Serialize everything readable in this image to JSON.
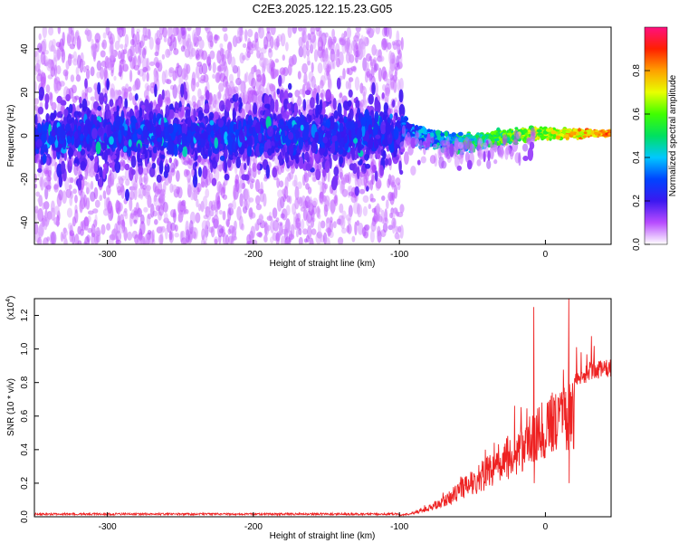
{
  "figure_title": "C2E3.2025.122.15.23.G05",
  "chart_data": [
    {
      "type": "heatmap",
      "xlabel": "Height of straight line (km)",
      "ylabel": "Frequency (Hz)",
      "xlim": [
        -350,
        45
      ],
      "ylim": [
        -50,
        50
      ],
      "x_ticks": [
        -300,
        -200,
        -100,
        0
      ],
      "y_ticks": [
        -40,
        -20,
        0,
        20,
        40
      ],
      "noise_region_x": [
        -350,
        -98
      ],
      "signal_track": [
        {
          "x": -98,
          "y": 3
        },
        {
          "x": -90,
          "y": 1
        },
        {
          "x": -80,
          "y": -1
        },
        {
          "x": -70,
          "y": -3
        },
        {
          "x": -60,
          "y": -4
        },
        {
          "x": -50,
          "y": -3
        },
        {
          "x": -40,
          "y": -2
        },
        {
          "x": -30,
          "y": -1
        },
        {
          "x": -20,
          "y": 0
        },
        {
          "x": -10,
          "y": 1
        },
        {
          "x": 0,
          "y": 1
        },
        {
          "x": 10,
          "y": 1
        },
        {
          "x": 20,
          "y": 1
        },
        {
          "x": 30,
          "y": 1
        },
        {
          "x": 45,
          "y": 1
        }
      ],
      "grid": false
    },
    {
      "type": "line",
      "xlabel": "Height of straight line (km)",
      "ylabel": "SNR (10 * v/v)",
      "yscale_note": "(x10",
      "yscale_exp": "4",
      "yscale_close": ")",
      "xlim": [
        -350,
        45
      ],
      "ylim": [
        0,
        1.3
      ],
      "x_ticks": [
        -300,
        -200,
        -100,
        0
      ],
      "y_ticks": [
        0.0,
        0.2,
        0.4,
        0.6,
        0.8,
        1.0,
        1.2
      ],
      "series": [
        {
          "color": "#ee2222",
          "envelope": [
            {
              "x": -350,
              "y": 0.01
            },
            {
              "x": -100,
              "y": 0.01
            },
            {
              "x": -90,
              "y": 0.03
            },
            {
              "x": -80,
              "y": 0.07
            },
            {
              "x": -70,
              "y": 0.13
            },
            {
              "x": -60,
              "y": 0.2
            },
            {
              "x": -50,
              "y": 0.28
            },
            {
              "x": -40,
              "y": 0.36
            },
            {
              "x": -30,
              "y": 0.45
            },
            {
              "x": -20,
              "y": 0.55
            },
            {
              "x": -10,
              "y": 0.63
            },
            {
              "x": 0,
              "y": 0.7
            },
            {
              "x": 10,
              "y": 0.78
            },
            {
              "x": 20,
              "y": 0.86
            },
            {
              "x": 30,
              "y": 0.92
            },
            {
              "x": 45,
              "y": 0.95
            }
          ],
          "spikes": [
            {
              "x": -8,
              "y": 1.25
            },
            {
              "x": 16,
              "y": 1.3
            }
          ]
        }
      ],
      "grid": false
    }
  ],
  "colorbar": {
    "label": "Normalized spectral amplitude",
    "range": [
      0,
      1
    ],
    "ticks": [
      0.0,
      0.2,
      0.4,
      0.6,
      0.8
    ],
    "colors": [
      "#ffffff",
      "#b84cff",
      "#3b18f0",
      "#0044ff",
      "#00c8ff",
      "#00e060",
      "#40ff00",
      "#e8ff00",
      "#ffa000",
      "#ff2000",
      "#ff1080"
    ]
  }
}
